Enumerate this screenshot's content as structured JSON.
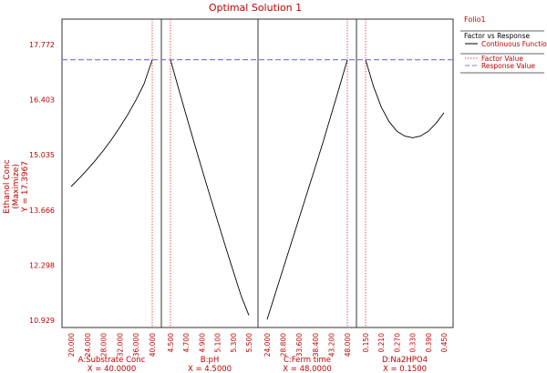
{
  "chart_data": {
    "type": "line",
    "title": "Optimal Solution 1",
    "ylabel_lines": [
      "Ethanol Conc",
      "(Maximize)",
      "Y = 17.3967"
    ],
    "yticks": [
      "17.772",
      "16.403",
      "15.035",
      "13.666",
      "12.298",
      "10.929"
    ],
    "ytick_values": [
      17.772,
      16.403,
      15.035,
      13.666,
      12.298,
      10.929
    ],
    "ylim": [
      10.929,
      17.772
    ],
    "response_value": 17.3967,
    "legend": {
      "title": "Folio1",
      "header": "Factor vs Response",
      "entries": [
        "Continuous Function",
        "Factor Value",
        "Response Value"
      ]
    },
    "panels": [
      {
        "name": "A:Substrate Conc",
        "setting": "X = 40.0000",
        "xticks": [
          "20.000",
          "24.000",
          "28.000",
          "32.000",
          "36.000",
          "40.000"
        ],
        "xtick_values": [
          20,
          24,
          28,
          32,
          36,
          40
        ],
        "xlim": [
          20,
          40
        ],
        "factor_value": 40,
        "x": [
          20,
          22,
          24,
          26,
          28,
          30,
          32,
          34,
          36,
          38,
          40
        ],
        "y": [
          14.25,
          14.45,
          14.67,
          14.9,
          15.15,
          15.42,
          15.72,
          16.04,
          16.4,
          16.8,
          17.3967
        ]
      },
      {
        "name": "B:pH",
        "setting": "X = 4.5000",
        "xticks": [
          "4.500",
          "4.700",
          "4.900",
          "5.100",
          "5.300",
          "5.500"
        ],
        "xtick_values": [
          4.5,
          4.7,
          4.9,
          5.1,
          5.3,
          5.5
        ],
        "xlim": [
          4.5,
          5.5
        ],
        "factor_value": 4.5,
        "x": [
          4.5,
          4.6,
          4.7,
          4.8,
          4.9,
          5.0,
          5.1,
          5.2,
          5.3,
          5.4,
          5.5
        ],
        "y": [
          17.3967,
          16.7,
          16.02,
          15.35,
          14.69,
          14.04,
          13.4,
          12.77,
          12.15,
          11.54,
          11.05
        ]
      },
      {
        "name": "C:Ferm time",
        "setting": "X = 48.0000",
        "xticks": [
          "24.000",
          "28.800",
          "33.600",
          "38.400",
          "43.200",
          "48.000"
        ],
        "xtick_values": [
          24,
          28.8,
          33.6,
          38.4,
          43.2,
          48
        ],
        "xlim": [
          24,
          48
        ],
        "factor_value": 48,
        "x": [
          24,
          26.4,
          28.8,
          31.2,
          33.6,
          36,
          38.4,
          40.8,
          43.2,
          45.6,
          48
        ],
        "y": [
          10.95,
          11.58,
          12.21,
          12.84,
          13.47,
          14.1,
          14.73,
          15.37,
          16.04,
          16.71,
          17.3967
        ]
      },
      {
        "name": "D:Na2HPO4",
        "setting": "X = 0.1500",
        "xticks": [
          "0.150",
          "0.210",
          "0.270",
          "0.330",
          "0.390",
          "0.450"
        ],
        "xtick_values": [
          0.15,
          0.21,
          0.27,
          0.33,
          0.39,
          0.45
        ],
        "xlim": [
          0.15,
          0.45
        ],
        "factor_value": 0.15,
        "x": [
          0.15,
          0.18,
          0.21,
          0.24,
          0.27,
          0.3,
          0.33,
          0.36,
          0.39,
          0.42,
          0.45
        ],
        "y": [
          17.3967,
          16.74,
          16.22,
          15.86,
          15.62,
          15.5,
          15.46,
          15.5,
          15.62,
          15.82,
          16.08
        ]
      }
    ]
  },
  "colors": {
    "axis_text": "#c00000",
    "function_line": "#000000",
    "factor_line": "#e04040",
    "response_line": "#8080e0",
    "frame": "#333333"
  }
}
